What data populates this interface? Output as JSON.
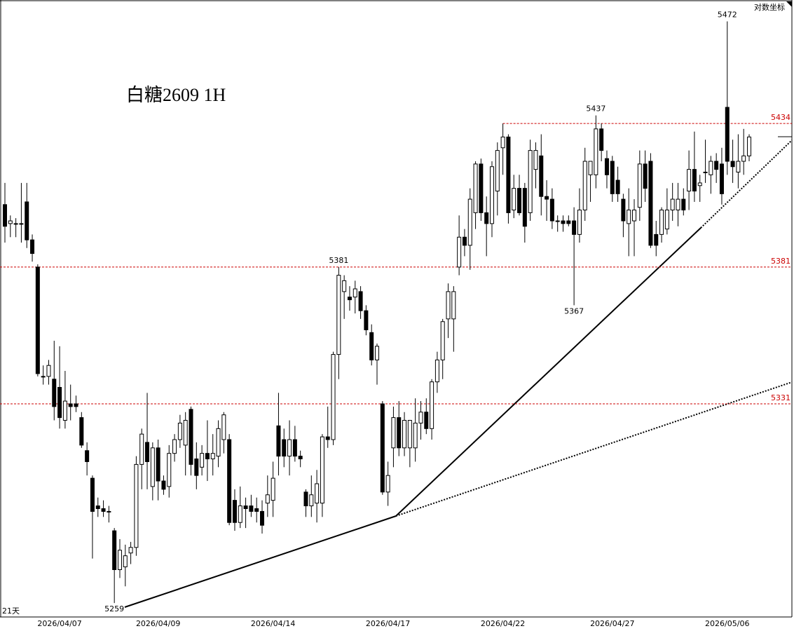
{
  "chart_data": {
    "type": "candlestick",
    "title": "白糖2609 1H",
    "scale_label": "对数坐标",
    "period_label": "21天",
    "log_scale": true,
    "ylim": [
      5254,
      5480
    ],
    "up_color": "#ffffff",
    "down_color": "#000000",
    "level_color": "#cc0000",
    "levels": [
      5434,
      5381,
      5331
    ],
    "marked_highs": [
      5472,
      5437,
      5381
    ],
    "marked_lows": [
      5367,
      5259
    ],
    "categories": [
      null,
      null,
      null,
      null,
      null,
      null,
      null,
      null,
      null,
      null,
      "2026/04/07",
      null,
      null,
      null,
      null,
      null,
      null,
      null,
      null,
      null,
      null,
      null,
      null,
      null,
      null,
      null,
      null,
      null,
      "2026/04/09",
      null,
      null,
      null,
      null,
      null,
      null,
      null,
      null,
      null,
      null,
      null,
      null,
      null,
      null,
      null,
      null,
      null,
      null,
      null,
      null,
      "2026/04/14",
      null,
      null,
      null,
      null,
      null,
      null,
      null,
      null,
      null,
      null,
      null,
      null,
      null,
      null,
      null,
      null,
      null,
      null,
      null,
      null,
      "2026/04/17",
      null,
      null,
      null,
      null,
      null,
      null,
      null,
      null,
      null,
      null,
      null,
      null,
      null,
      null,
      null,
      null,
      null,
      null,
      null,
      null,
      "2026/04/22",
      null,
      null,
      null,
      null,
      null,
      null,
      null,
      null,
      null,
      null,
      null,
      null,
      null,
      null,
      null,
      null,
      null,
      null,
      null,
      "2026/04/27",
      null,
      null,
      null,
      null,
      null,
      null,
      null,
      null,
      null,
      null,
      null,
      null,
      null,
      null,
      null,
      null,
      null,
      null,
      null,
      null,
      "2026/05/06",
      null,
      null,
      null,
      null
    ],
    "open": [
      5404,
      5397,
      5397,
      5397,
      5405,
      5391,
      5381,
      5341,
      5341,
      5340,
      5337,
      5325,
      5331,
      5331,
      5326,
      5314,
      5304,
      5294,
      5293,
      5292,
      5285,
      5271,
      5272,
      5277,
      5279,
      5309,
      5317,
      5301,
      5315,
      5303,
      5301,
      5313,
      5318,
      5316,
      5329,
      5311,
      5308,
      5313,
      5311,
      5312,
      5318,
      5318,
      5296,
      5288,
      5294,
      5294,
      5293,
      5292,
      5295,
      5296,
      5323,
      5318,
      5312,
      5318,
      5312,
      5299,
      5294,
      5295,
      5295,
      5319,
      5318,
      5349,
      5372,
      5370,
      5370,
      5372,
      5365,
      5357,
      5347,
      5331,
      5299,
      5315,
      5326,
      5315,
      5315,
      5315,
      5324,
      5328,
      5322,
      5339,
      5347,
      5362,
      5362,
      5381,
      5392,
      5389,
      5401,
      5419,
      5401,
      5397,
      5409,
      5425,
      5429,
      5402,
      5410,
      5410,
      5401,
      5417,
      5422,
      5407,
      5406,
      5398,
      5398,
      5398,
      5398,
      5393,
      5402,
      5415,
      5415,
      5432,
      5421,
      5420,
      5413,
      5406,
      5397,
      5398,
      5403,
      5419,
      5420,
      5393,
      5393,
      5395,
      5402,
      5402,
      5406,
      5409,
      5417,
      5411,
      5416,
      5415,
      5420,
      5419,
      5440,
      5420,
      5416,
      5420,
      5422
    ],
    "high": [
      5412,
      5400,
      5399,
      5412,
      5412,
      5393,
      5382,
      5345,
      5347,
      5354,
      5352,
      5343,
      5338,
      5334,
      5328,
      5317,
      5305,
      5297,
      5296,
      5294,
      5286,
      5282,
      5280,
      5281,
      5312,
      5322,
      5335,
      5317,
      5318,
      5305,
      5316,
      5320,
      5327,
      5328,
      5330,
      5317,
      5316,
      5325,
      5320,
      5325,
      5328,
      5320,
      5300,
      5301,
      5297,
      5298,
      5297,
      5296,
      5305,
      5310,
      5335,
      5322,
      5325,
      5323,
      5314,
      5300,
      5305,
      5307,
      5320,
      5330,
      5350,
      5381,
      5378,
      5374,
      5376,
      5374,
      5367,
      5360,
      5353,
      5332,
      5310,
      5330,
      5332,
      5328,
      5325,
      5333,
      5332,
      5333,
      5340,
      5350,
      5362,
      5375,
      5374,
      5400,
      5395,
      5410,
      5420,
      5421,
      5407,
      5420,
      5427,
      5434,
      5430,
      5415,
      5415,
      5412,
      5428,
      5427,
      5430,
      5413,
      5410,
      5400,
      5400,
      5400,
      5403,
      5410,
      5425,
      5420,
      5437,
      5434,
      5424,
      5422,
      5418,
      5408,
      5410,
      5406,
      5424,
      5424,
      5423,
      5398,
      5403,
      5410,
      5412,
      5412,
      5410,
      5424,
      5431,
      5415,
      5428,
      5422,
      5423,
      5425,
      5472,
      5428,
      5430,
      5432,
      5430
    ],
    "low": [
      5390,
      5392,
      5392,
      5390,
      5388,
      5383,
      5341,
      5338,
      5338,
      5325,
      5322,
      5322,
      5325,
      5328,
      5315,
      5305,
      5275,
      5290,
      5290,
      5288,
      5259,
      5268,
      5265,
      5273,
      5276,
      5300,
      5300,
      5296,
      5296,
      5298,
      5297,
      5310,
      5315,
      5305,
      5305,
      5300,
      5305,
      5303,
      5305,
      5308,
      5313,
      5287,
      5285,
      5286,
      5286,
      5290,
      5288,
      5284,
      5290,
      5290,
      5305,
      5308,
      5305,
      5310,
      5308,
      5290,
      5290,
      5288,
      5290,
      5315,
      5316,
      5340,
      5362,
      5365,
      5364,
      5362,
      5356,
      5345,
      5338,
      5298,
      5294,
      5308,
      5312,
      5312,
      5308,
      5310,
      5318,
      5320,
      5318,
      5335,
      5340,
      5355,
      5350,
      5378,
      5385,
      5380,
      5395,
      5398,
      5385,
      5392,
      5400,
      5415,
      5397,
      5399,
      5400,
      5390,
      5398,
      5410,
      5400,
      5398,
      5395,
      5394,
      5394,
      5396,
      5367,
      5390,
      5398,
      5405,
      5410,
      5420,
      5410,
      5405,
      5405,
      5392,
      5385,
      5385,
      5398,
      5405,
      5388,
      5385,
      5390,
      5393,
      5398,
      5396,
      5400,
      5402,
      5405,
      5405,
      5412,
      5408,
      5412,
      5404,
      5415,
      5412,
      5410,
      5415,
      5420
    ],
    "close": [
      5396,
      5398,
      5397,
      5397,
      5391,
      5386,
      5342,
      5341,
      5345,
      5330,
      5326,
      5332,
      5330,
      5330,
      5316,
      5310,
      5292,
      5293,
      5292,
      5292,
      5271,
      5278,
      5276,
      5279,
      5309,
      5320,
      5310,
      5315,
      5303,
      5300,
      5313,
      5318,
      5324,
      5325,
      5309,
      5305,
      5313,
      5311,
      5313,
      5322,
      5327,
      5288,
      5288,
      5294,
      5293,
      5292,
      5292,
      5287,
      5298,
      5304,
      5312,
      5312,
      5318,
      5312,
      5311,
      5294,
      5298,
      5302,
      5319,
      5318,
      5349,
      5378,
      5376,
      5369,
      5373,
      5365,
      5358,
      5347,
      5352,
      5299,
      5305,
      5326,
      5315,
      5325,
      5325,
      5324,
      5328,
      5322,
      5339,
      5347,
      5361,
      5372,
      5372,
      5392,
      5389,
      5406,
      5419,
      5401,
      5397,
      5418,
      5424,
      5429,
      5401,
      5410,
      5401,
      5396,
      5424,
      5424,
      5407,
      5406,
      5398,
      5398,
      5397,
      5397,
      5393,
      5402,
      5420,
      5420,
      5432,
      5424,
      5415,
      5408,
      5408,
      5398,
      5402,
      5402,
      5419,
      5410,
      5389,
      5389,
      5402,
      5402,
      5406,
      5406,
      5402,
      5417,
      5409,
      5412,
      5416,
      5420,
      5417,
      5408,
      5420,
      5418,
      5420,
      5422,
      5429
    ]
  }
}
